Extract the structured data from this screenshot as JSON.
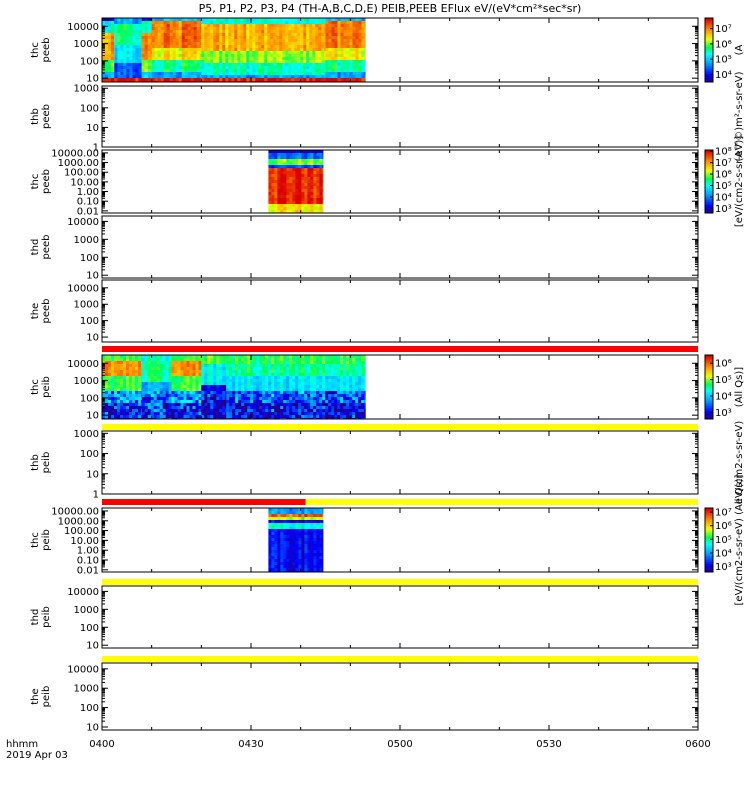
{
  "chart_data": {
    "type": "heatmap",
    "title": "P5, P1, P2, P3, P4 (TH-A,B,C,D,E) PEIB,PEEB EFlux eV/(eV*cm²*sec*sr)",
    "x_tick_labels": [
      "0400",
      "0430",
      "0500",
      "0530",
      "0600"
    ],
    "x_ticks_minutes": [
      0,
      30,
      60,
      90,
      120
    ],
    "x_range_minutes": [
      0,
      120
    ],
    "time_label": "hhmm",
    "date_label": "2019 Apr 03",
    "y_scale": "log",
    "panels": [
      {
        "label": "thc\npeeb",
        "ytick_labels": [
          "10",
          "100",
          "1000",
          "10000"
        ],
        "ytick_values": [
          10,
          100,
          1000,
          10000
        ],
        "ylim": [
          6,
          30000
        ],
        "colorbar": {
          "ticks": [
            "10⁴",
            "10⁵",
            "10⁶",
            "10⁷"
          ],
          "range_exp": [
            3.5,
            7.7
          ],
          "unit": "(A"
        },
        "data": [
          {
            "start": 0,
            "end": 2.5,
            "profile": "electron_a"
          },
          {
            "start": 2.5,
            "end": 8,
            "profile": "electron_gap"
          },
          {
            "start": 8,
            "end": 10,
            "profile": "electron_a"
          },
          {
            "start": 10,
            "end": 20,
            "profile": "electron_b"
          },
          {
            "start": 20,
            "end": 45,
            "profile": "electron_c"
          },
          {
            "start": 45,
            "end": 53,
            "profile": "electron_b"
          }
        ]
      },
      {
        "label": "thb\npeeb",
        "ytick_labels": [
          "1",
          "10",
          "100",
          "1000"
        ],
        "ytick_values": [
          1,
          10,
          100,
          1000
        ],
        "ylim": [
          1,
          1300
        ],
        "colorbar": {
          "ticks": [],
          "unit": "(A™©)m²-s-sr-eV)"
        },
        "data": []
      },
      {
        "label": "thc\npeeb",
        "ytick_labels": [
          "0.01",
          "0.10",
          "1.00",
          "10.00",
          "100.00",
          "1000.00",
          "10000.00"
        ],
        "ytick_values": [
          0.01,
          0.1,
          1,
          10,
          100,
          1000,
          10000
        ],
        "ylim": [
          0.006,
          20000
        ],
        "colorbar": {
          "ticks": [
            "10³",
            "10⁴",
            "10⁵",
            "10⁶",
            "10⁷",
            "10⁸"
          ],
          "range_exp": [
            2.6,
            8.1
          ],
          "unit": "[eV/(cm2-s-sr-eV)]"
        },
        "data": [
          {
            "start": 33.5,
            "end": 44.5,
            "profile": "burst_c"
          }
        ]
      },
      {
        "label": "thd\npeeb",
        "ytick_labels": [
          "10",
          "100",
          "1000",
          "10000"
        ],
        "ytick_values": [
          10,
          100,
          1000,
          10000
        ],
        "ylim": [
          7,
          20000
        ],
        "colorbar": {
          "ticks": [],
          "unit": ""
        },
        "data": []
      },
      {
        "label": "the\npeeb",
        "ytick_labels": [
          "10",
          "100",
          "1000",
          "10000"
        ],
        "ytick_values": [
          10,
          100,
          1000,
          10000
        ],
        "ylim": [
          5,
          30000
        ],
        "colorbar": {
          "ticks": [],
          "unit": ""
        },
        "data": []
      },
      {
        "label": "thc\npeib",
        "ytick_labels": [
          "10",
          "100",
          "1000",
          "10000"
        ],
        "ytick_values": [
          10,
          100,
          1000,
          10000
        ],
        "ylim": [
          6,
          30000
        ],
        "colorbar": {
          "ticks": [
            "10³",
            "10⁴",
            "10⁵",
            "10⁶"
          ],
          "range_exp": [
            2.6,
            6.5
          ],
          "unit": "(All Qs)]"
        },
        "data": [
          {
            "start": 0,
            "end": 8,
            "profile": "ion_a"
          },
          {
            "start": 8,
            "end": 14,
            "profile": "ion_b"
          },
          {
            "start": 14,
            "end": 20,
            "profile": "ion_a"
          },
          {
            "start": 20,
            "end": 25,
            "profile": "ion_gap"
          },
          {
            "start": 25,
            "end": 53,
            "profile": "ion_c"
          }
        ]
      },
      {
        "label": "thb\npeib",
        "ytick_labels": [
          "1",
          "10",
          "100",
          "1000"
        ],
        "ytick_values": [
          1,
          10,
          100,
          1000
        ],
        "ylim": [
          1,
          1300
        ],
        "colorbar": {
          "ticks": [],
          "unit": "eV/(cm2-s-sr-eV)"
        },
        "data": []
      },
      {
        "label": "thc\npeib",
        "ytick_labels": [
          "0.01",
          "0.10",
          "1.00",
          "10.00",
          "100.00",
          "1000.00",
          "10000.00"
        ],
        "ytick_values": [
          0.01,
          0.1,
          1,
          10,
          100,
          1000,
          10000
        ],
        "ylim": [
          0.006,
          20000
        ],
        "colorbar": {
          "ticks": [
            "10³",
            "10⁴",
            "10⁵",
            "10⁶",
            "10⁷"
          ],
          "range_exp": [
            2.6,
            7.3
          ],
          "unit": "[eV/(cm2-s-sr-eV) (All Qs)]"
        },
        "data": [
          {
            "start": 33.5,
            "end": 44.5,
            "profile": "burst_i"
          }
        ]
      },
      {
        "label": "thd\npeib",
        "ytick_labels": [
          "10",
          "100",
          "1000",
          "10000"
        ],
        "ytick_values": [
          10,
          100,
          1000,
          10000
        ],
        "ylim": [
          7,
          20000
        ],
        "colorbar": {
          "ticks": [],
          "unit": ""
        },
        "data": []
      },
      {
        "label": "the\npeib",
        "ytick_labels": [
          "10",
          "100",
          "1000",
          "10000"
        ],
        "ytick_values": [
          10,
          100,
          1000,
          10000
        ],
        "ylim": [
          7,
          20000
        ],
        "colorbar": {
          "ticks": [],
          "unit": ""
        },
        "data": []
      }
    ],
    "status_bars": [
      {
        "after_panel": 4,
        "color": "#ff0000",
        "segments": [
          {
            "start": 0,
            "end": 120
          }
        ]
      },
      {
        "after_panel": 5,
        "color": "#ffff00",
        "segments": [
          {
            "start": 0,
            "end": 120
          }
        ]
      },
      {
        "after_panel": 6,
        "color": "#ff0000",
        "segments": [
          {
            "start": 0,
            "end": 41
          }
        ]
      },
      {
        "after_panel": 6,
        "color": "#ffff00",
        "segments": [
          {
            "start": 41,
            "end": 120
          }
        ]
      },
      {
        "after_panel": 7,
        "color": "#ffff00",
        "segments": [
          {
            "start": 0,
            "end": 120
          }
        ]
      },
      {
        "after_panel": 8,
        "color": "#ffff00",
        "segments": [
          {
            "start": 0,
            "end": 120
          }
        ]
      }
    ]
  }
}
